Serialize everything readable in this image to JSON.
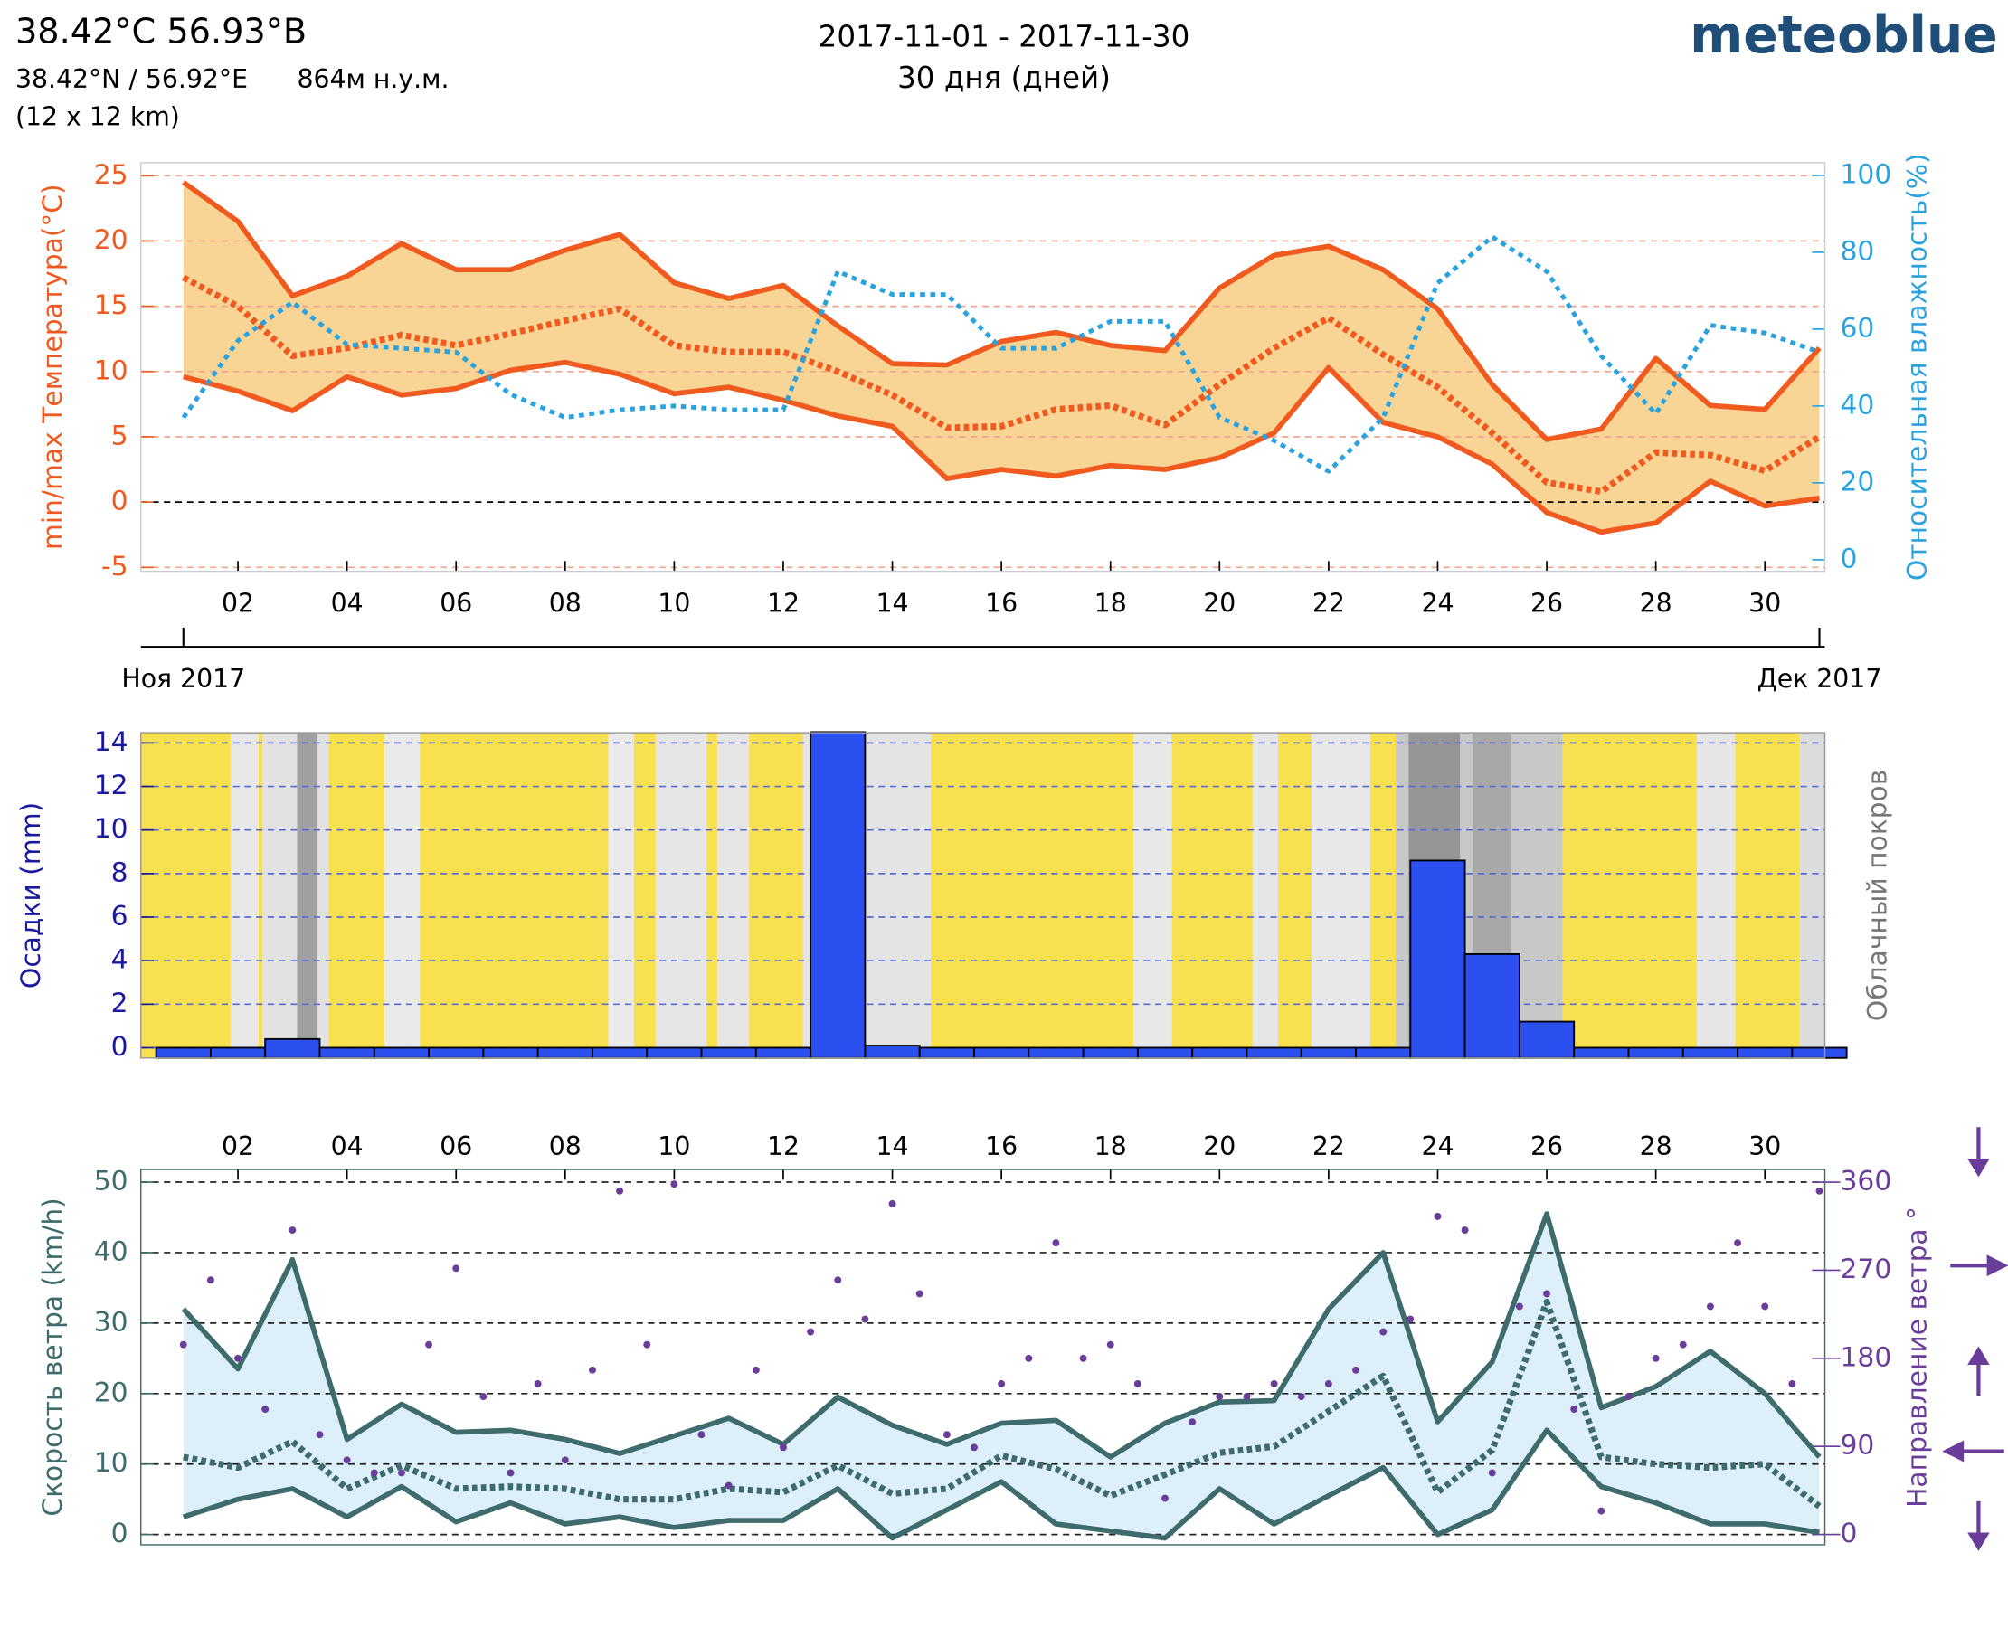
{
  "header": {
    "title": "38.42°C 56.93°В",
    "coords": "38.42°N / 56.92°E",
    "elevation": "864м н.у.м.",
    "resolution": "(12 x 12 km)",
    "period": "2017-11-01 - 2017-11-30",
    "days": "30 дня (дней)",
    "brand": "meteoblue"
  },
  "chart_data": [
    {
      "type": "line",
      "y_label": "min/max Температура(°C)",
      "y2_label": "Относительная влажность(%)",
      "x": [
        1,
        2,
        3,
        4,
        5,
        6,
        7,
        8,
        9,
        10,
        11,
        12,
        13,
        14,
        15,
        16,
        17,
        18,
        19,
        20,
        21,
        22,
        23,
        24,
        25,
        26,
        27,
        28,
        29,
        30,
        31
      ],
      "xlim": [
        0.22,
        31.1
      ],
      "xticks": [
        {
          "value": 2,
          "label": "02"
        },
        {
          "value": 4,
          "label": "04"
        },
        {
          "value": 6,
          "label": "06"
        },
        {
          "value": 8,
          "label": "08"
        },
        {
          "value": 10,
          "label": "10"
        },
        {
          "value": 12,
          "label": "12"
        },
        {
          "value": 14,
          "label": "14"
        },
        {
          "value": 16,
          "label": "16"
        },
        {
          "value": 18,
          "label": "18"
        },
        {
          "value": 20,
          "label": "20"
        },
        {
          "value": 22,
          "label": "22"
        },
        {
          "value": 24,
          "label": "24"
        },
        {
          "value": 26,
          "label": "26"
        },
        {
          "value": 28,
          "label": "28"
        },
        {
          "value": 30,
          "label": "30"
        }
      ],
      "ylim": [
        -5.3,
        26
      ],
      "yticks": [
        -5,
        0,
        5,
        10,
        15,
        20,
        25
      ],
      "y2lim": [
        -3,
        103.3
      ],
      "y2ticks": [
        0,
        20,
        40,
        60,
        80,
        100
      ],
      "grid": true,
      "fill_between": [
        0,
        2
      ],
      "fill_color": "#f9d595",
      "months": [
        {
          "x": 1,
          "text": "Ноя 2017"
        },
        {
          "x": 31,
          "text": "Дек 2017"
        }
      ],
      "series": [
        {
          "color": "#f05a1e",
          "style": "solid",
          "values": [
            24.5,
            21.5,
            15.8,
            17.3,
            19.8,
            17.8,
            17.8,
            19.3,
            20.5,
            16.8,
            15.6,
            16.6,
            13.5,
            10.6,
            10.5,
            12.3,
            13.0,
            12.0,
            11.6,
            16.4,
            18.9,
            19.6,
            17.8,
            14.8,
            9.0,
            4.8,
            5.6,
            11.0,
            7.4,
            7.1,
            11.8
          ]
        },
        {
          "color": "#f05a1e",
          "style": "dotted",
          "values": [
            17.2,
            15.0,
            11.2,
            11.8,
            12.8,
            12.0,
            12.9,
            13.9,
            14.8,
            12.0,
            11.5,
            11.5,
            10.0,
            8.2,
            5.7,
            5.8,
            7.1,
            7.4,
            5.9,
            9.0,
            11.8,
            14.1,
            11.3,
            8.8,
            5.3,
            1.5,
            0.8,
            3.8,
            3.6,
            2.4,
            5.0
          ]
        },
        {
          "color": "#f05a1e",
          "style": "solid",
          "values": [
            9.6,
            8.5,
            7.0,
            9.6,
            8.2,
            8.7,
            10.1,
            10.7,
            9.8,
            8.3,
            8.8,
            7.8,
            6.6,
            5.8,
            1.8,
            2.5,
            2.0,
            2.8,
            2.5,
            3.4,
            5.3,
            10.3,
            6.1,
            5.0,
            2.9,
            -0.8,
            -2.3,
            -1.6,
            1.6,
            -0.3,
            0.3
          ]
        },
        {
          "color": "#29a3e0",
          "style": "dotted",
          "axis": "y2",
          "values": [
            37,
            57,
            67,
            56,
            55,
            54,
            43,
            37,
            39,
            40,
            39,
            39,
            75,
            69,
            69,
            55,
            55,
            62,
            62,
            37,
            31,
            23,
            37,
            72,
            84,
            75,
            53,
            38,
            61,
            59,
            54
          ]
        }
      ]
    },
    {
      "type": "bar",
      "y_label": "Осадки (mm)",
      "y2_label": "Облачный покров",
      "x": [
        1,
        2,
        3,
        4,
        5,
        6,
        7,
        8,
        9,
        10,
        11,
        12,
        13,
        14,
        15,
        16,
        17,
        18,
        19,
        20,
        21,
        22,
        23,
        24,
        25,
        26,
        27,
        28,
        29,
        30,
        31
      ],
      "xlim": [
        0.22,
        31.1
      ],
      "values": [
        0,
        0,
        0.4,
        0,
        0,
        0,
        0,
        0,
        0,
        0,
        0,
        0,
        14.5,
        0.1,
        0,
        0,
        0,
        0,
        0,
        0,
        0,
        0,
        0,
        8.6,
        4.3,
        1.2,
        0,
        0,
        0,
        0,
        0
      ],
      "color": "#2c4ff0",
      "ylim": [
        -0.47,
        14.47
      ],
      "yticks": [
        0,
        2,
        4,
        6,
        8,
        10,
        12,
        14
      ],
      "grid": true
    },
    {
      "type": "line",
      "y_label": "Скорость ветра (km/h)",
      "y2_label": "Направление ветра °",
      "x": [
        1,
        2,
        3,
        4,
        5,
        6,
        7,
        8,
        9,
        10,
        11,
        12,
        13,
        14,
        15,
        16,
        17,
        18,
        19,
        20,
        21,
        22,
        23,
        24,
        25,
        26,
        27,
        28,
        29,
        30,
        31
      ],
      "xlim": [
        0.22,
        31.1
      ],
      "xticks": [
        {
          "value": 2,
          "label": "02"
        },
        {
          "value": 4,
          "label": "04"
        },
        {
          "value": 6,
          "label": "06"
        },
        {
          "value": 8,
          "label": "08"
        },
        {
          "value": 10,
          "label": "10"
        },
        {
          "value": 12,
          "label": "12"
        },
        {
          "value": 14,
          "label": "14"
        },
        {
          "value": 16,
          "label": "16"
        },
        {
          "value": 18,
          "label": "18"
        },
        {
          "value": 20,
          "label": "20"
        },
        {
          "value": 22,
          "label": "22"
        },
        {
          "value": 24,
          "label": "24"
        },
        {
          "value": 26,
          "label": "26"
        },
        {
          "value": 28,
          "label": "28"
        },
        {
          "value": 30,
          "label": "30"
        }
      ],
      "ylim": [
        -1.45,
        51.8
      ],
      "yticks": [
        0,
        10,
        20,
        30,
        40,
        50
      ],
      "y2lim": [
        -10.5,
        373
      ],
      "y2ticks": [
        0,
        90,
        180,
        270,
        360
      ],
      "grid": true,
      "fill_between": [
        0,
        2
      ],
      "fill_color": "#ddeff9",
      "series": [
        {
          "color": "#3e6b6b",
          "style": "solid",
          "values": [
            32,
            23.5,
            39,
            13.5,
            18.5,
            14.5,
            14.8,
            13.5,
            11.5,
            14,
            16.5,
            12.8,
            19.5,
            15.5,
            12.8,
            15.8,
            16.2,
            11,
            15.8,
            18.8,
            19,
            32,
            40,
            16,
            24.5,
            45.5,
            18,
            21,
            26,
            20,
            11
          ]
        },
        {
          "color": "#3e6b6b",
          "style": "dotted",
          "values": [
            11,
            9.5,
            13.2,
            6.5,
            9.8,
            6.5,
            6.8,
            6.5,
            5,
            5,
            6.5,
            6,
            9.8,
            5.8,
            6.5,
            11.2,
            9.3,
            5.5,
            8.5,
            11.6,
            12.5,
            17.5,
            22.5,
            6,
            12,
            33,
            11,
            10,
            9.5,
            10,
            4
          ]
        },
        {
          "color": "#3e6b6b",
          "style": "solid",
          "values": [
            2.5,
            5,
            6.5,
            2.5,
            6.8,
            1.8,
            4.5,
            1.5,
            2.5,
            1,
            2,
            2,
            6.5,
            -0.5,
            3.5,
            7.5,
            1.5,
            0.5,
            -0.5,
            6.5,
            1.5,
            5.5,
            9.5,
            0,
            3.5,
            14.8,
            6.8,
            4.5,
            1.5,
            1.5,
            0.3
          ]
        },
        {
          "color": "#6a3d9a",
          "style": "scatter",
          "axis": "y2",
          "x": [
            1,
            1.5,
            2,
            2.5,
            3,
            3.5,
            4,
            4.5,
            5,
            5.5,
            6,
            6.5,
            7,
            7.5,
            8,
            8.5,
            9,
            9.5,
            10,
            10.5,
            11,
            11.5,
            12,
            12.5,
            13,
            13.5,
            14,
            14.5,
            15,
            15.5,
            16,
            16.5,
            17,
            17.5,
            18,
            18.5,
            19,
            19.5,
            20,
            20.5,
            21,
            21.5,
            22,
            22.5,
            23,
            23.5,
            24,
            24.5,
            25,
            25.5,
            26,
            26.5,
            27,
            27.5,
            28,
            28.5,
            29,
            29.5,
            30,
            30.5,
            31
          ],
          "values": [
            194,
            260,
            180,
            128,
            311,
            102,
            76,
            63,
            63,
            194,
            272,
            141,
            63,
            154,
            76,
            168,
            351,
            194,
            358,
            102,
            50,
            168,
            89,
            207,
            260,
            220,
            338,
            246,
            102,
            89,
            154,
            180,
            298,
            180,
            194,
            154,
            37,
            115,
            141,
            141,
            154,
            141,
            154,
            168,
            207,
            220,
            325,
            311,
            63,
            233,
            246,
            128,
            24,
            141,
            180,
            194,
            233,
            298,
            233,
            154,
            351
          ]
        }
      ]
    }
  ]
}
